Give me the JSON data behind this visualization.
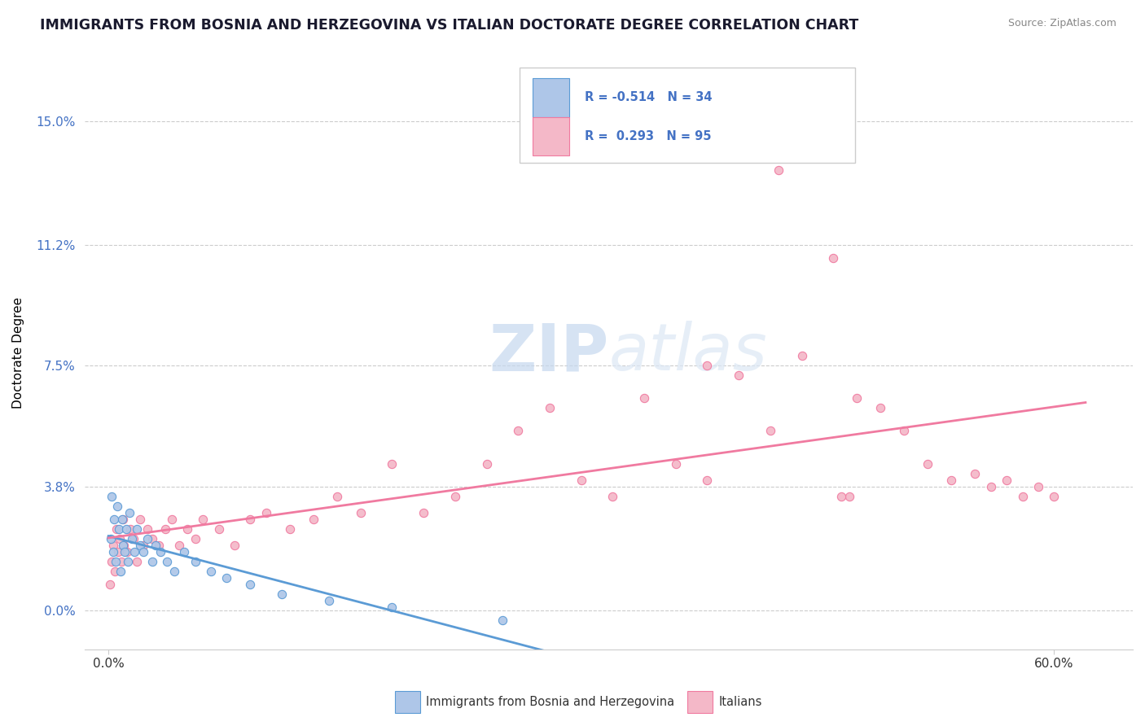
{
  "title": "IMMIGRANTS FROM BOSNIA AND HERZEGOVINA VS ITALIAN DOCTORATE DEGREE CORRELATION CHART",
  "source": "Source: ZipAtlas.com",
  "ylabel_ticks": [
    0.0,
    3.8,
    7.5,
    11.2,
    15.0
  ],
  "ylabel": "Doctorate Degree",
  "legend_bottom": [
    "Immigrants from Bosnia and Herzegovina",
    "Italians"
  ],
  "blue_line_color": "#5b9bd5",
  "pink_line_color": "#f07aa0",
  "blue_scatter_face": "#aec6e8",
  "blue_scatter_edge": "#5b9bd5",
  "pink_scatter_face": "#f4b8c8",
  "pink_scatter_edge": "#f07aa0",
  "watermark_color": "#dde8f5",
  "blue_points_x": [
    0.15,
    0.22,
    0.28,
    0.35,
    0.45,
    0.55,
    0.65,
    0.75,
    0.85,
    0.95,
    1.05,
    1.15,
    1.25,
    1.35,
    1.5,
    1.65,
    1.8,
    2.0,
    2.2,
    2.5,
    2.8,
    3.0,
    3.3,
    3.7,
    4.2,
    4.8,
    5.5,
    6.5,
    7.5,
    9.0,
    11.0,
    14.0,
    18.0,
    25.0
  ],
  "blue_points_y": [
    2.2,
    3.5,
    1.8,
    2.8,
    1.5,
    3.2,
    2.5,
    1.2,
    2.8,
    2.0,
    1.8,
    2.5,
    1.5,
    3.0,
    2.2,
    1.8,
    2.5,
    2.0,
    1.8,
    2.2,
    1.5,
    2.0,
    1.8,
    1.5,
    1.2,
    1.8,
    1.5,
    1.2,
    1.0,
    0.8,
    0.5,
    0.3,
    0.1,
    -0.3
  ],
  "pink_points_x": [
    0.1,
    0.2,
    0.3,
    0.4,
    0.5,
    0.6,
    0.7,
    0.8,
    0.9,
    1.0,
    1.2,
    1.4,
    1.6,
    1.8,
    2.0,
    2.2,
    2.5,
    2.8,
    3.2,
    3.6,
    4.0,
    4.5,
    5.0,
    5.5,
    6.0,
    7.0,
    8.0,
    9.0,
    10.0,
    11.5,
    13.0,
    14.5,
    16.0,
    18.0,
    20.0,
    22.0,
    24.0,
    26.0,
    28.0,
    30.0,
    32.0,
    34.0,
    36.0,
    38.0,
    40.0,
    42.0,
    44.0,
    46.0,
    47.5,
    49.0,
    50.5,
    52.0,
    53.5,
    55.0,
    56.0,
    57.0,
    58.0,
    59.0,
    60.0,
    42.5,
    47.0,
    38.0,
    46.5
  ],
  "pink_points_y": [
    0.8,
    1.5,
    2.0,
    1.2,
    2.5,
    1.8,
    2.2,
    1.5,
    2.8,
    2.0,
    1.8,
    2.5,
    2.2,
    1.5,
    2.8,
    2.0,
    2.5,
    2.2,
    2.0,
    2.5,
    2.8,
    2.0,
    2.5,
    2.2,
    2.8,
    2.5,
    2.0,
    2.8,
    3.0,
    2.5,
    2.8,
    3.5,
    3.0,
    4.5,
    3.0,
    3.5,
    4.5,
    5.5,
    6.2,
    4.0,
    3.5,
    6.5,
    4.5,
    7.5,
    7.2,
    5.5,
    7.8,
    10.8,
    6.5,
    6.2,
    5.5,
    4.5,
    4.0,
    4.2,
    3.8,
    4.0,
    3.5,
    3.8,
    3.5,
    13.5,
    3.5,
    4.0,
    3.5
  ]
}
